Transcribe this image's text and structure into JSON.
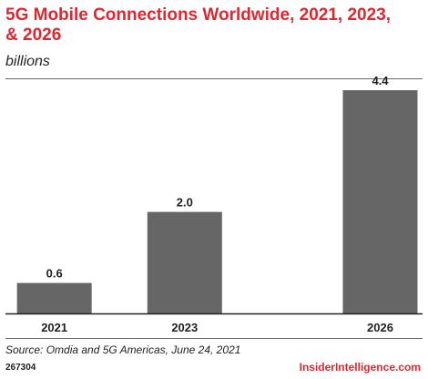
{
  "header": {
    "title": "5G Mobile Connections Worldwide, 2021, 2023, & 2026",
    "subtitle": "billions"
  },
  "footer": {
    "source": "Source: Omdia and 5G Americas, June 24, 2021",
    "chart_id": "267304",
    "brand": "InsiderIntelligence.com"
  },
  "colors": {
    "bar": "#666666",
    "title": "#e0262f",
    "brand": "#e0262f"
  },
  "chart_data": {
    "type": "bar",
    "title": "5G Mobile Connections Worldwide, 2021, 2023, & 2026",
    "subtitle": "billions",
    "categories": [
      "2021",
      "2023",
      "2026"
    ],
    "x": [
      2021,
      2023,
      2026
    ],
    "values": [
      0.6,
      2.0,
      4.4
    ],
    "data_labels": [
      "0.6",
      "2.0",
      "4.4"
    ],
    "ylim": [
      0,
      4.4
    ],
    "grid": false,
    "legend": "none"
  }
}
